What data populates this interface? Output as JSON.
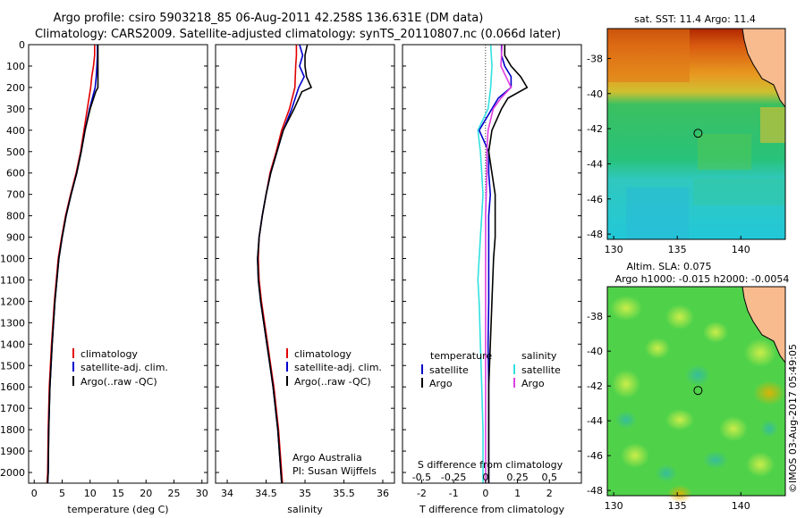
{
  "title": {
    "line1": "Argo profile: csiro 5903218_85 06-Aug-2011 42.258S 136.631E (DM data)",
    "line2": "Climatology: CARS2009. Satellite-adjusted climatology: synTS_20110807.nc (0.066d later)"
  },
  "colors": {
    "climatology": "#e00000",
    "satellite": "#0000cc",
    "argo": "#000000",
    "salinity_sat": "#33e0e0",
    "salinity_argo": "#e040e0"
  },
  "depth_axis": {
    "range": [
      0,
      2050
    ],
    "ticks": [
      0,
      100,
      200,
      300,
      400,
      500,
      600,
      700,
      800,
      900,
      1000,
      1100,
      1200,
      1300,
      1400,
      1500,
      1600,
      1700,
      1800,
      1900,
      2000
    ]
  },
  "chart_data": [
    {
      "type": "line",
      "xlabel": "temperature (deg C)",
      "ylabel": "",
      "xlim": [
        -1,
        31
      ],
      "ylim": [
        2050,
        0
      ],
      "xticks": [
        0,
        5,
        10,
        15,
        20,
        25,
        30
      ],
      "legend": [
        "climatology",
        "satellite-adj. clim.",
        "Argo(..raw -QC)"
      ],
      "series": [
        {
          "name": "climatology",
          "color": "#e00000",
          "depth": [
            0,
            50,
            100,
            150,
            200,
            300,
            400,
            500,
            600,
            700,
            800,
            900,
            1000,
            1200,
            1400,
            1600,
            1800,
            2000,
            2050
          ],
          "values": [
            10.8,
            10.8,
            10.6,
            10.3,
            10.1,
            9.5,
            8.9,
            8.3,
            7.5,
            6.5,
            5.6,
            4.9,
            4.3,
            3.6,
            3.1,
            2.7,
            2.5,
            2.4,
            2.3
          ]
        },
        {
          "name": "satellite-adj. clim.",
          "color": "#0000cc",
          "depth": [
            0,
            50,
            100,
            150,
            200,
            300,
            400,
            500,
            600,
            700,
            800,
            900,
            1000,
            1200,
            1400,
            1600,
            1800,
            2000,
            2050
          ],
          "values": [
            11.3,
            11.3,
            11.2,
            11.1,
            10.9,
            9.9,
            9.1,
            8.4,
            7.6,
            6.6,
            5.7,
            5.0,
            4.4,
            3.7,
            3.2,
            2.8,
            2.6,
            2.5,
            2.4
          ]
        },
        {
          "name": "Argo(..raw -QC)",
          "color": "#000000",
          "depth": [
            0,
            50,
            100,
            150,
            200,
            220,
            300,
            400,
            500,
            600,
            700,
            800,
            900,
            1000,
            1200,
            1400,
            1600,
            1800,
            2000,
            2050
          ],
          "values": [
            11.4,
            11.4,
            11.4,
            11.4,
            11.4,
            11.0,
            10.0,
            9.1,
            8.4,
            7.6,
            6.6,
            5.7,
            5.0,
            4.4,
            3.7,
            3.2,
            2.8,
            2.6,
            2.5,
            2.4
          ]
        }
      ]
    },
    {
      "type": "line",
      "xlabel": "salinity",
      "ylabel": "",
      "xlim": [
        33.85,
        36.15
      ],
      "ylim": [
        2050,
        0
      ],
      "xticks": [
        34,
        34.5,
        35,
        35.5,
        36
      ],
      "legend": [
        "climatology",
        "satellite-adj. clim.",
        "Argo(..raw -QC)"
      ],
      "annotation": [
        "Argo Australia",
        "PI: Susan Wijffels"
      ],
      "series": [
        {
          "name": "climatology",
          "color": "#e00000",
          "depth": [
            0,
            50,
            100,
            200,
            300,
            400,
            500,
            600,
            700,
            800,
            900,
            1000,
            1100,
            1200,
            1300,
            1400,
            1500,
            1600,
            1800,
            2000,
            2050
          ],
          "values": [
            34.89,
            34.89,
            34.88,
            34.87,
            34.8,
            34.7,
            34.63,
            34.55,
            34.5,
            34.45,
            34.41,
            34.4,
            34.41,
            34.44,
            34.48,
            34.52,
            34.56,
            34.6,
            34.66,
            34.7,
            34.71
          ]
        },
        {
          "name": "satellite-adj. clim.",
          "color": "#0000cc",
          "depth": [
            0,
            50,
            100,
            150,
            200,
            300,
            400,
            500,
            600,
            700,
            800,
            900,
            1000,
            1100,
            1200,
            1300,
            1400,
            1500,
            1600,
            1800,
            2000,
            2050
          ],
          "values": [
            34.93,
            34.97,
            34.93,
            34.99,
            34.92,
            34.83,
            34.72,
            34.64,
            34.56,
            34.5,
            34.45,
            34.41,
            34.39,
            34.4,
            34.43,
            34.47,
            34.51,
            34.55,
            34.59,
            34.65,
            34.69,
            34.7
          ]
        },
        {
          "name": "Argo(..raw -QC)",
          "color": "#000000",
          "depth": [
            0,
            50,
            100,
            150,
            200,
            220,
            300,
            400,
            500,
            600,
            700,
            800,
            900,
            1000,
            1100,
            1200,
            1300,
            1400,
            1500,
            1600,
            1800,
            2000,
            2050
          ],
          "values": [
            35.03,
            35.0,
            35.0,
            35.02,
            35.08,
            34.96,
            34.86,
            34.72,
            34.64,
            34.56,
            34.5,
            34.45,
            34.41,
            34.39,
            34.4,
            34.43,
            34.47,
            34.51,
            34.55,
            34.59,
            34.65,
            34.69,
            34.7
          ]
        }
      ]
    },
    {
      "type": "line",
      "xlabel": "T difference from climatology",
      "xlabel_top": "S difference from climatology",
      "ylabel": "",
      "xlim": [
        -2.6,
        3.0
      ],
      "ylim": [
        2050,
        0
      ],
      "xticks": [
        -2,
        -1,
        0,
        1,
        2
      ],
      "xticks_top": [
        -0.5,
        -0.25,
        0,
        0.25,
        0.5
      ],
      "xticks_top_labels": [
        "-0.5",
        "-0.25",
        "0",
        "0.25",
        "0.5"
      ],
      "legend_groups": {
        "temperature": [
          "satellite",
          "Argo"
        ],
        "salinity": [
          "satellite",
          "Argo"
        ]
      },
      "legend_headers": [
        "temperature",
        "salinity"
      ],
      "legend_items": [
        "satellite",
        "Argo",
        "satellite",
        "Argo"
      ],
      "series": [
        {
          "name": "temperature satellite",
          "color": "#0000cc",
          "depth": [
            0,
            50,
            100,
            150,
            200,
            250,
            300,
            400,
            500,
            600,
            700,
            800,
            900,
            1000,
            1200,
            1400,
            1600,
            1800,
            2000,
            2050
          ],
          "values": [
            0.5,
            0.5,
            0.6,
            0.8,
            0.8,
            0.4,
            0.2,
            -0.2,
            0.1,
            0.1,
            0.15,
            0.1,
            0.1,
            0.1,
            0.1,
            0.08,
            0.1,
            0.1,
            0.1,
            0.1
          ]
        },
        {
          "name": "temperature Argo",
          "color": "#000000",
          "depth": [
            0,
            50,
            100,
            150,
            200,
            250,
            300,
            400,
            500,
            600,
            700,
            800,
            900,
            1000,
            1200,
            1400,
            1600,
            1800,
            2000,
            2050
          ],
          "values": [
            0.6,
            0.6,
            0.8,
            1.1,
            1.3,
            0.7,
            0.5,
            0.2,
            0.1,
            0.2,
            0.3,
            0.3,
            0.3,
            0.25,
            0.2,
            0.15,
            0.1,
            0.1,
            0.1,
            0.1
          ]
        },
        {
          "name": "salinity satellite",
          "color": "#33e0e0",
          "depth": [
            0,
            100,
            200,
            300,
            400,
            500,
            600,
            700,
            800,
            900,
            1000,
            1100,
            1200,
            1400,
            1600,
            1800,
            2000,
            2050
          ],
          "values": [
            0.04,
            0.05,
            0.04,
            0.02,
            -0.06,
            -0.04,
            -0.03,
            -0.02,
            -0.03,
            -0.04,
            -0.05,
            -0.06,
            -0.05,
            -0.04,
            -0.03,
            -0.02,
            -0.02,
            -0.02
          ]
        },
        {
          "name": "salinity Argo",
          "color": "#e040e0",
          "depth": [
            0,
            100,
            150,
            200,
            250,
            300,
            400,
            500,
            600,
            800,
            1000,
            1200,
            1400,
            1600,
            1800,
            2000,
            2050
          ],
          "values": [
            0.13,
            0.12,
            0.16,
            0.2,
            0.12,
            0.06,
            0.02,
            0.01,
            0.01,
            0.0,
            0.0,
            0.0,
            0.0,
            0.0,
            0.0,
            0.0,
            0.0
          ]
        }
      ]
    },
    {
      "type": "heatmap",
      "title": "sat. SST: 11.4  Argo: 11.4",
      "xlim": [
        129.5,
        143.5
      ],
      "ylim": [
        -48.3,
        -36.3
      ],
      "xticks": [
        130,
        135,
        140
      ],
      "yticks": [
        -38,
        -40,
        -42,
        -44,
        -46,
        -48
      ],
      "marker": {
        "lon": 136.631,
        "lat": -42.258
      }
    },
    {
      "type": "heatmap",
      "title": "Altim. SLA: 0.075",
      "subtitle": "Argo h1000: -0.015 h2000: -0.0054",
      "xlim": [
        129.5,
        143.5
      ],
      "ylim": [
        -48.3,
        -36.3
      ],
      "xticks": [
        130,
        135,
        140
      ],
      "yticks": [
        -38,
        -40,
        -42,
        -44,
        -46,
        -48
      ],
      "marker": {
        "lon": 136.631,
        "lat": -42.258
      }
    }
  ],
  "credit": "©IMOS 03-Aug-2017 05:49:05"
}
